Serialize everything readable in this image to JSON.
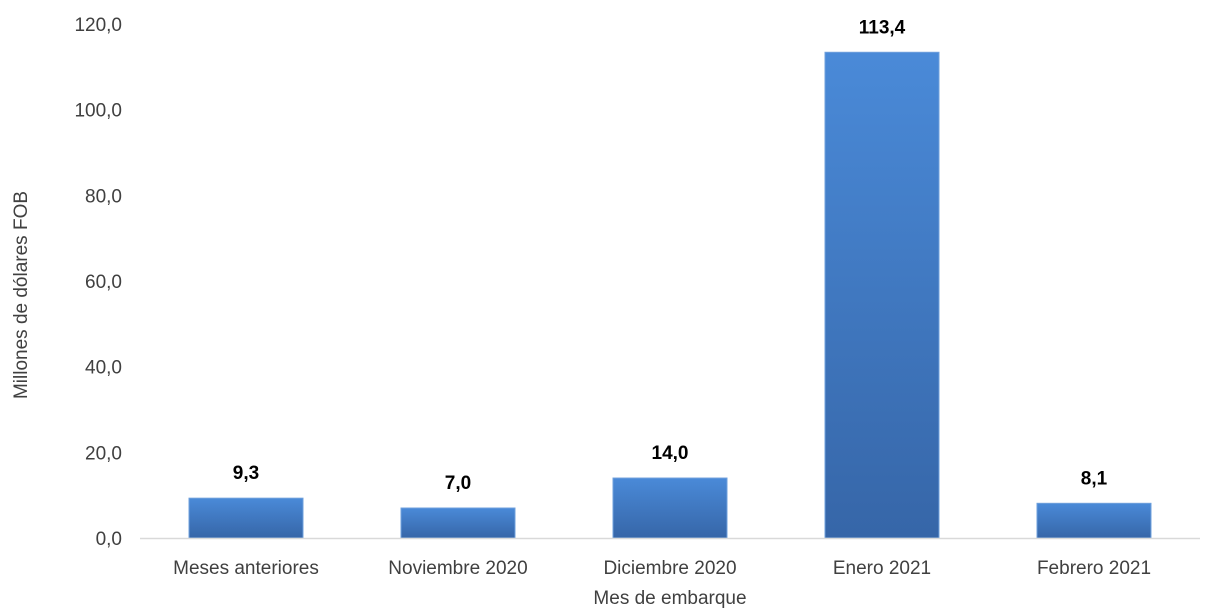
{
  "chart_data": {
    "type": "bar",
    "title": "",
    "xlabel": "Mes de embarque",
    "ylabel": "Millones de dólares FOB",
    "categories": [
      "Meses anteriores",
      "Noviembre 2020",
      "Diciembre 2020",
      "Enero 2021",
      "Febrero 2021"
    ],
    "values": [
      9.3,
      7.0,
      14.0,
      113.4,
      8.1
    ],
    "data_labels": [
      "9,3",
      "7,0",
      "14,0",
      "113,4",
      "8,1"
    ],
    "ylim": [
      0,
      120
    ],
    "yticks": [
      0,
      20,
      40,
      60,
      80,
      100,
      120
    ],
    "ytick_labels": [
      "0,0",
      "20,0",
      "40,0",
      "60,0",
      "80,0",
      "100,0",
      "120,0"
    ],
    "grid": false,
    "legend": "none",
    "colors": {
      "bar_top": "#4a8ad8",
      "bar_bottom": "#3666a8",
      "axis": "#d9d9d9",
      "text": "#404040"
    }
  }
}
